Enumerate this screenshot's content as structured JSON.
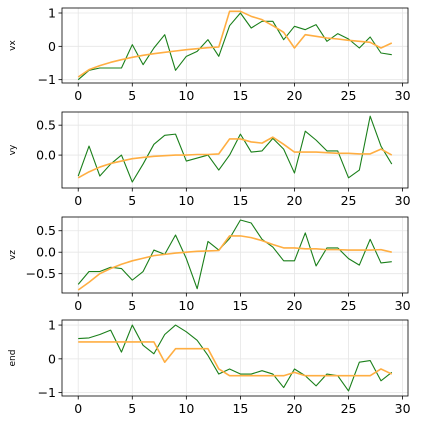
{
  "chart_data": [
    {
      "type": "line",
      "ylabel": "vx",
      "xlim": [
        -1.5,
        30.5
      ],
      "ylim": [
        -1.1,
        1.15
      ],
      "xticks": [
        0,
        5,
        10,
        15,
        20,
        25,
        30
      ],
      "yticks": [
        -1,
        0,
        1
      ],
      "grid": true,
      "x": [
        0,
        1,
        2,
        3,
        4,
        5,
        6,
        7,
        8,
        9,
        10,
        11,
        12,
        13,
        14,
        15,
        16,
        17,
        18,
        19,
        20,
        21,
        22,
        23,
        24,
        25,
        26,
        27,
        28,
        29
      ],
      "series": [
        {
          "color": "#1a7f1a",
          "values": [
            -1.0,
            -0.72,
            -0.65,
            -0.65,
            -0.65,
            0.05,
            -0.55,
            -0.05,
            0.35,
            -0.72,
            -0.3,
            -0.15,
            0.2,
            -0.3,
            0.62,
            1.0,
            0.55,
            0.75,
            0.75,
            0.2,
            0.6,
            0.5,
            0.65,
            0.15,
            0.38,
            0.22,
            -0.05,
            0.28,
            -0.2,
            -0.25
          ]
        },
        {
          "color": "#ffae42",
          "values": [
            -0.92,
            -0.7,
            -0.58,
            -0.48,
            -0.4,
            -0.33,
            -0.27,
            -0.22,
            -0.18,
            -0.14,
            -0.1,
            -0.07,
            -0.04,
            -0.02,
            1.05,
            1.05,
            0.9,
            0.8,
            0.62,
            0.42,
            -0.05,
            0.35,
            0.3,
            0.25,
            0.22,
            0.18,
            0.15,
            0.12,
            -0.05,
            0.1
          ]
        }
      ]
    },
    {
      "type": "line",
      "ylabel": "vy",
      "xlim": [
        -1.5,
        30.5
      ],
      "ylim": [
        -0.55,
        0.72
      ],
      "xticks": [
        0,
        5,
        10,
        15,
        20,
        25,
        30
      ],
      "yticks": [
        0.0,
        0.5
      ],
      "ytick_labels": [
        "0.0",
        "0.5"
      ],
      "grid": true,
      "x": [
        0,
        1,
        2,
        3,
        4,
        5,
        6,
        7,
        8,
        9,
        10,
        11,
        12,
        13,
        14,
        15,
        16,
        17,
        18,
        19,
        20,
        21,
        22,
        23,
        24,
        25,
        26,
        27,
        28,
        29
      ],
      "series": [
        {
          "color": "#1a7f1a",
          "values": [
            -0.35,
            0.15,
            -0.35,
            -0.15,
            0.0,
            -0.45,
            -0.15,
            0.18,
            0.33,
            0.35,
            -0.1,
            -0.05,
            0.0,
            -0.25,
            0.0,
            0.35,
            0.05,
            0.07,
            0.28,
            0.1,
            -0.3,
            0.4,
            0.25,
            0.07,
            0.07,
            -0.38,
            -0.25,
            0.65,
            0.15,
            -0.15
          ]
        },
        {
          "color": "#ffae42",
          "values": [
            -0.38,
            -0.28,
            -0.2,
            -0.14,
            -0.1,
            -0.06,
            -0.04,
            -0.02,
            -0.01,
            0.0,
            0.0,
            0.01,
            0.01,
            0.02,
            0.27,
            0.27,
            0.22,
            0.2,
            0.3,
            0.18,
            0.05,
            0.05,
            0.05,
            0.04,
            0.03,
            0.03,
            0.02,
            0.02,
            0.1,
            0.0
          ]
        }
      ]
    },
    {
      "type": "line",
      "ylabel": "vz",
      "xlim": [
        -1.5,
        30.5
      ],
      "ylim": [
        -0.95,
        0.82
      ],
      "xticks": [
        0,
        5,
        10,
        15,
        20,
        25,
        30
      ],
      "yticks": [
        -0.5,
        0.0,
        0.5
      ],
      "ytick_labels": [
        "−0.5",
        "0.0",
        "0.5"
      ],
      "grid": true,
      "x": [
        0,
        1,
        2,
        3,
        4,
        5,
        6,
        7,
        8,
        9,
        10,
        11,
        12,
        13,
        14,
        15,
        16,
        17,
        18,
        19,
        20,
        21,
        22,
        23,
        24,
        25,
        26,
        27,
        28,
        29
      ],
      "series": [
        {
          "color": "#1a7f1a",
          "values": [
            -0.75,
            -0.45,
            -0.45,
            -0.35,
            -0.38,
            -0.65,
            -0.45,
            0.05,
            -0.05,
            0.4,
            -0.15,
            -0.85,
            0.25,
            0.05,
            0.32,
            0.75,
            0.68,
            0.3,
            0.12,
            -0.2,
            -0.2,
            0.45,
            -0.32,
            0.1,
            0.1,
            -0.15,
            -0.3,
            0.3,
            -0.25,
            -0.22
          ]
        },
        {
          "color": "#ffae42",
          "values": [
            -0.88,
            -0.7,
            -0.5,
            -0.38,
            -0.28,
            -0.2,
            -0.14,
            -0.08,
            -0.05,
            -0.02,
            0.0,
            0.02,
            0.03,
            0.04,
            0.38,
            0.38,
            0.34,
            0.27,
            0.18,
            0.1,
            0.1,
            0.08,
            0.08,
            0.06,
            0.06,
            0.05,
            0.05,
            0.05,
            0.06,
            0.0
          ]
        }
      ]
    },
    {
      "type": "line",
      "ylabel": "end",
      "xlim": [
        -1.5,
        30.5
      ],
      "ylim": [
        -1.1,
        1.15
      ],
      "xticks": [
        0,
        5,
        10,
        15,
        20,
        25,
        30
      ],
      "yticks": [
        -1,
        0,
        1
      ],
      "grid": true,
      "x": [
        0,
        1,
        2,
        3,
        4,
        5,
        6,
        7,
        8,
        9,
        10,
        11,
        12,
        13,
        14,
        15,
        16,
        17,
        18,
        19,
        20,
        21,
        22,
        23,
        24,
        25,
        26,
        27,
        28,
        29
      ],
      "series": [
        {
          "color": "#1a7f1a",
          "values": [
            0.6,
            0.62,
            0.72,
            0.85,
            0.2,
            1.0,
            0.4,
            0.15,
            0.72,
            1.0,
            0.8,
            0.55,
            0.1,
            -0.45,
            -0.3,
            -0.45,
            -0.45,
            -0.35,
            -0.45,
            -0.85,
            -0.3,
            -0.5,
            -0.8,
            -0.45,
            -0.5,
            -0.95,
            -0.1,
            -0.05,
            -0.65,
            -0.4
          ]
        },
        {
          "color": "#ffae42",
          "values": [
            0.5,
            0.5,
            0.5,
            0.5,
            0.5,
            0.5,
            0.5,
            0.5,
            -0.1,
            0.3,
            0.3,
            0.3,
            0.3,
            -0.3,
            -0.5,
            -0.5,
            -0.5,
            -0.5,
            -0.5,
            -0.5,
            -0.4,
            -0.5,
            -0.5,
            -0.5,
            -0.5,
            -0.5,
            -0.5,
            -0.5,
            -0.3,
            -0.45
          ]
        }
      ]
    }
  ]
}
